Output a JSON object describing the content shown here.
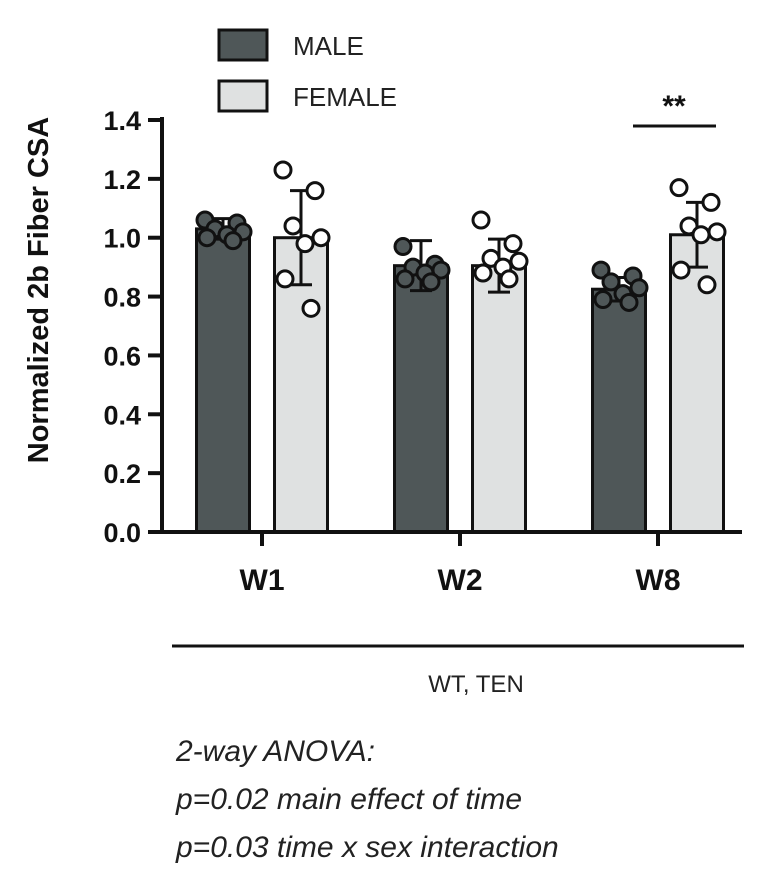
{
  "chart_data": {
    "type": "bar",
    "ylabel": "Normalized 2b Fiber CSA",
    "ylim": [
      0,
      1.4
    ],
    "yticks": [
      "0.0",
      "0.2",
      "0.4",
      "0.6",
      "0.8",
      "1.0",
      "1.2",
      "1.4"
    ],
    "categories": [
      "W1",
      "W2",
      "W8"
    ],
    "group_label": "WT, TEN",
    "series": [
      {
        "name": "MALE",
        "color": "#4f5758",
        "point_fill": "#4f5758",
        "values": [
          1.03,
          0.905,
          0.825
        ],
        "errors": [
          0.035,
          0.085,
          0.04
        ],
        "points": [
          [
            1.06,
            1.05,
            1.03,
            1.02,
            1.01,
            1.0,
            0.99
          ],
          [
            0.97,
            0.91,
            0.9,
            0.89,
            0.88,
            0.86,
            0.85
          ],
          [
            0.89,
            0.87,
            0.85,
            0.83,
            0.81,
            0.79,
            0.78
          ]
        ]
      },
      {
        "name": "FEMALE",
        "color": "#dfe1e1",
        "point_fill": "#ffffff",
        "values": [
          1.0,
          0.905,
          1.01
        ],
        "errors": [
          0.16,
          0.09,
          0.11
        ],
        "points": [
          [
            1.23,
            1.16,
            1.04,
            1.0,
            0.98,
            0.86,
            0.76
          ],
          [
            1.06,
            0.98,
            0.93,
            0.92,
            0.9,
            0.88,
            0.86
          ],
          [
            1.17,
            1.12,
            1.04,
            1.02,
            1.01,
            0.89,
            0.84
          ]
        ]
      }
    ],
    "annotations": [
      {
        "text": "**",
        "category": "W8",
        "between": [
          "MALE",
          "FEMALE"
        ]
      }
    ],
    "legend": "top-left"
  },
  "stats": {
    "line1": "2-way ANOVA:",
    "line2": "p=0.02 main effect of time",
    "line3": "p=0.03 time x sex interaction"
  }
}
